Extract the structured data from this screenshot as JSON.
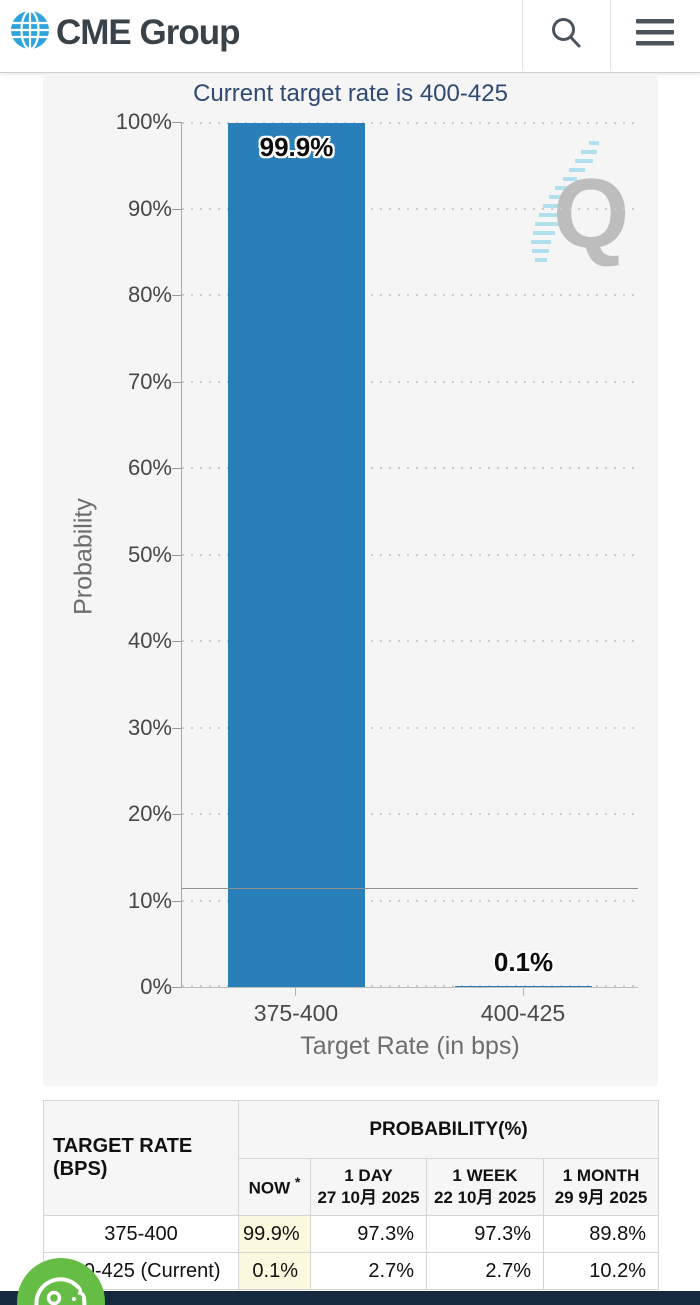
{
  "header": {
    "brand": "CME Group"
  },
  "chart_data": {
    "type": "bar",
    "title": "Current target rate is 400-425",
    "categories": [
      "375-400",
      "400-425"
    ],
    "values": [
      99.9,
      0.1
    ],
    "value_labels": [
      "99.9%",
      "0.1%"
    ],
    "xlabel": "Target Rate (in bps)",
    "ylabel": "Probability",
    "ylim": [
      0,
      100
    ],
    "ytick_labels": [
      "100%",
      "90%",
      "80%",
      "70%",
      "60%",
      "50%",
      "40%",
      "30%",
      "20%",
      "10%",
      "0%"
    ],
    "grid": "dotted horizontal lines every 10%",
    "legend_position": "none",
    "reference_line_value": 11.4,
    "bar_color": "#2980B9",
    "watermark_letter": "Q"
  },
  "table": {
    "corner_header": "TARGET RATE (BPS)",
    "group_header": "PROBABILITY(%)",
    "columns": [
      {
        "label": "NOW",
        "sup": "*",
        "date": ""
      },
      {
        "label": "1 DAY",
        "date": "27 10月 2025"
      },
      {
        "label": "1 WEEK",
        "date": "22 10月 2025"
      },
      {
        "label": "1 MONTH",
        "date": "29 9月 2025"
      }
    ],
    "rows": [
      {
        "rate": "375-400",
        "values": [
          "99.9%",
          "97.3%",
          "97.3%",
          "89.8%"
        ]
      },
      {
        "rate": "400-425 (Current)",
        "values": [
          "0.1%",
          "2.7%",
          "2.7%",
          "10.2%"
        ]
      }
    ],
    "highlight_color": "#FBF9DD"
  },
  "colors": {
    "accent_blue": "#2980B9",
    "brand_blue": "#2FA3DC",
    "title_navy": "#2E4A72",
    "footer_navy": "#15293F",
    "cookie_green": "#66BD45"
  }
}
